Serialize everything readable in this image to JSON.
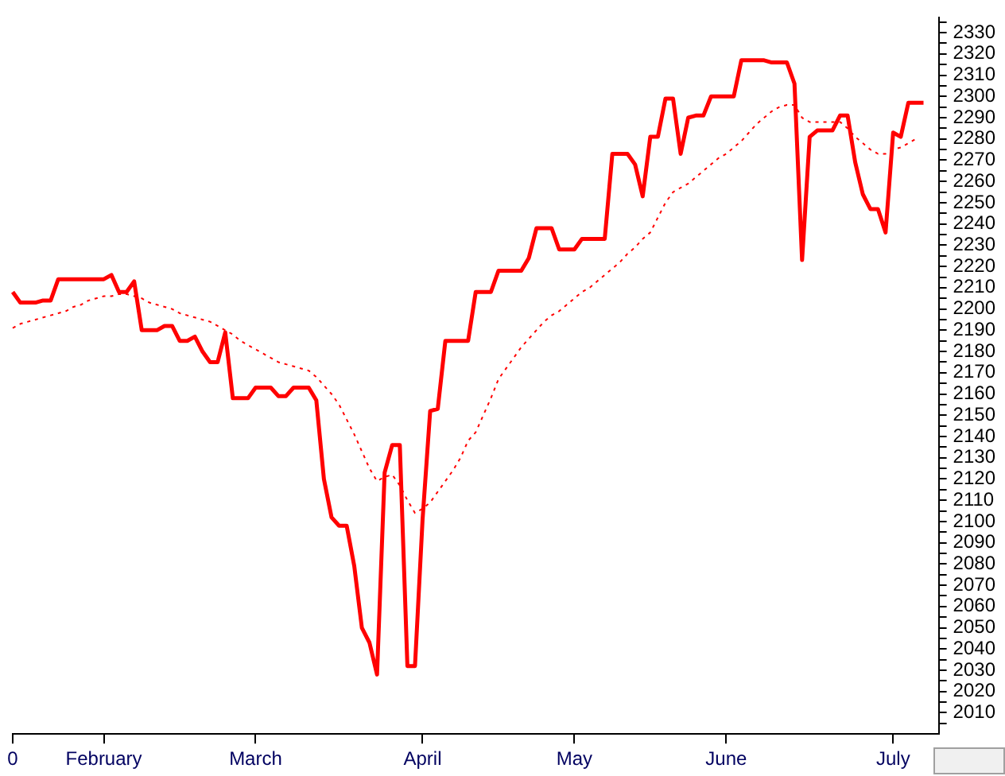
{
  "chart_data": {
    "type": "line",
    "categories": [
      "0",
      null,
      null,
      null,
      null,
      null,
      null,
      null,
      null,
      null,
      null,
      null,
      "February",
      null,
      null,
      null,
      null,
      null,
      null,
      null,
      null,
      null,
      null,
      null,
      null,
      null,
      null,
      null,
      null,
      null,
      null,
      null,
      "March",
      null,
      null,
      null,
      null,
      null,
      null,
      null,
      null,
      null,
      null,
      null,
      null,
      null,
      null,
      null,
      null,
      null,
      null,
      null,
      null,
      null,
      "April",
      null,
      null,
      null,
      null,
      null,
      null,
      null,
      null,
      null,
      null,
      null,
      null,
      null,
      null,
      null,
      null,
      null,
      null,
      null,
      "May",
      null,
      null,
      null,
      null,
      null,
      null,
      null,
      null,
      null,
      null,
      null,
      null,
      null,
      null,
      null,
      null,
      null,
      null,
      null,
      "June",
      null,
      null,
      null,
      null,
      null,
      null,
      null,
      null,
      null,
      null,
      null,
      null,
      null,
      null,
      null,
      null,
      null,
      null,
      null,
      null,
      null,
      "July",
      null,
      null,
      null,
      null,
      null,
      null
    ],
    "ylim": [
      2000,
      2337
    ],
    "yticks": [
      {
        "value": 2005,
        "label": null
      },
      2010,
      {
        "value": 2015,
        "label": null
      },
      2020,
      {
        "value": 2025,
        "label": null
      },
      2030,
      {
        "value": 2035,
        "label": null
      },
      2040,
      {
        "value": 2045,
        "label": null
      },
      2050,
      {
        "value": 2055,
        "label": null
      },
      2060,
      {
        "value": 2065,
        "label": null
      },
      2070,
      {
        "value": 2075,
        "label": null
      },
      2080,
      {
        "value": 2085,
        "label": null
      },
      2090,
      {
        "value": 2095,
        "label": null
      },
      2100,
      {
        "value": 2105,
        "label": null
      },
      2110,
      {
        "value": 2115,
        "label": null
      },
      2120,
      {
        "value": 2125,
        "label": null
      },
      2130,
      {
        "value": 2135,
        "label": null
      },
      2140,
      {
        "value": 2145,
        "label": null
      },
      2150,
      {
        "value": 2155,
        "label": null
      },
      2160,
      {
        "value": 2165,
        "label": null
      },
      2170,
      {
        "value": 2175,
        "label": null
      },
      2180,
      {
        "value": 2185,
        "label": null
      },
      2190,
      {
        "value": 2195,
        "label": null
      },
      2200,
      {
        "value": 2205,
        "label": null
      },
      2210,
      {
        "value": 2215,
        "label": null
      },
      2220,
      {
        "value": 2225,
        "label": null
      },
      2230,
      {
        "value": 2235,
        "label": null
      },
      2240,
      {
        "value": 2245,
        "label": null
      },
      2250,
      {
        "value": 2255,
        "label": null
      },
      2260,
      {
        "value": 2265,
        "label": null
      },
      2270,
      {
        "value": 2275,
        "label": null
      },
      2280,
      {
        "value": 2285,
        "label": null
      },
      2290,
      {
        "value": 2295,
        "label": null
      },
      2300,
      {
        "value": 2305,
        "label": null
      },
      2310,
      {
        "value": 2315,
        "label": null
      },
      2320,
      {
        "value": 2325,
        "label": null
      },
      2330,
      {
        "value": 2335,
        "label": null
      }
    ],
    "grid": false,
    "legend": false,
    "series": [
      {
        "color": "#ff0000",
        "line_style": "solid",
        "values": [
          2208,
          2203,
          2203,
          2203,
          2204,
          2204,
          2214,
          2214,
          2214,
          2214,
          2214,
          2214,
          2214,
          2216,
          2208,
          2208,
          2213,
          2190,
          2190,
          2190,
          2192,
          2192,
          2185,
          2185,
          2187,
          2180,
          2175,
          2175,
          2189,
          2158,
          2158,
          2158,
          2163,
          2163,
          2163,
          2159,
          2159,
          2163,
          2163,
          2163,
          2157,
          2120,
          2102,
          2098,
          2098,
          2079,
          2050,
          2043,
          2028,
          2123,
          2136,
          2136,
          2032,
          2032,
          2101,
          2152,
          2153,
          2185,
          2185,
          2185,
          2185,
          2208,
          2208,
          2208,
          2218,
          2218,
          2218,
          2218,
          2224,
          2238,
          2238,
          2238,
          2228,
          2228,
          2228,
          2233,
          2233,
          2233,
          2233,
          2273,
          2273,
          2273,
          2268,
          2253,
          2281,
          2281,
          2299,
          2299,
          2273,
          2290,
          2291,
          2291,
          2300,
          2300,
          2300,
          2300,
          2317,
          2317,
          2317,
          2317,
          2316,
          2316,
          2316,
          2306,
          2223,
          2281,
          2284,
          2284,
          2284,
          2291,
          2291,
          2269,
          2254,
          2247,
          2247,
          2236,
          2283,
          2281,
          2297,
          2297,
          2297,
          null,
          null
        ]
      },
      {
        "color": "#ff0000",
        "line_style": "dotted",
        "values": [
          2191,
          2193,
          2194,
          2195,
          2196,
          2197,
          2198,
          2199,
          2201,
          2202,
          2204,
          2205,
          2206,
          2206,
          2207,
          2207,
          2206,
          2205,
          2203,
          2202,
          2201,
          2200,
          2198,
          2197,
          2196,
          2195,
          2194,
          2192,
          2190,
          2188,
          2185,
          2183,
          2181,
          2179,
          2177,
          2175,
          2174,
          2173,
          2172,
          2171,
          2168,
          2164,
          2160,
          2155,
          2148,
          2141,
          2133,
          2125,
          2119,
          2121,
          2122,
          2117,
          2110,
          2104,
          2106,
          2109,
          2114,
          2119,
          2124,
          2130,
          2138,
          2142,
          2150,
          2158,
          2167,
          2172,
          2177,
          2182,
          2186,
          2190,
          2194,
          2197,
          2199,
          2202,
          2205,
          2208,
          2210,
          2213,
          2216,
          2219,
          2222,
          2226,
          2229,
          2233,
          2236,
          2243,
          2250,
          2255,
          2257,
          2259,
          2262,
          2265,
          2268,
          2271,
          2273,
          2276,
          2279,
          2283,
          2287,
          2290,
          2293,
          2295,
          2296,
          2296,
          2290,
          2288,
          2288,
          2288,
          2288,
          2288,
          2285,
          2281,
          2278,
          2275,
          2273,
          2273,
          2275,
          2276,
          2278,
          2280,
          null,
          null,
          null
        ]
      }
    ]
  }
}
